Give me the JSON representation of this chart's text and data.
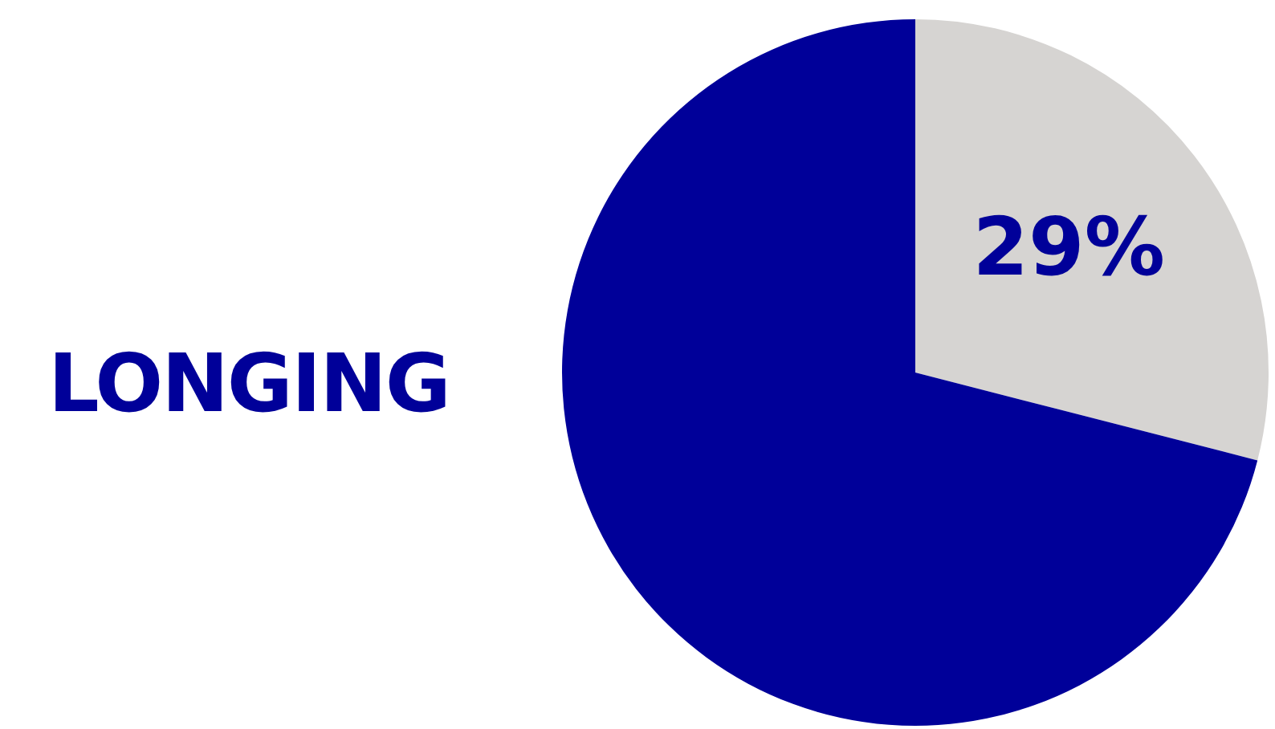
{
  "chart_data": {
    "type": "pie",
    "title": "LONGING",
    "categories": [
      null,
      null
    ],
    "values": [
      29,
      71
    ],
    "colors": [
      "#d6d4d2",
      "#000099"
    ],
    "value_labels": [
      "29%",
      null
    ],
    "legend": false
  }
}
